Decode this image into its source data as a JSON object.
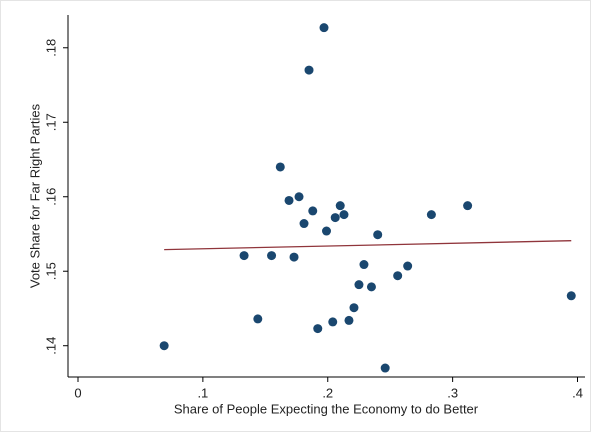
{
  "chart_data": {
    "type": "scatter",
    "xlabel": "Share of People Expecting the Economy to do Better",
    "ylabel": "Vote Share for Far Right Parties",
    "xlim": [
      -0.008,
      0.406
    ],
    "ylim": [
      0.1358,
      0.1844
    ],
    "xticks": [
      {
        "value": 0,
        "label": "0"
      },
      {
        "value": 0.1,
        "label": ".1"
      },
      {
        "value": 0.2,
        "label": ".2"
      },
      {
        "value": 0.3,
        "label": ".3"
      },
      {
        "value": 0.4,
        "label": ".4"
      }
    ],
    "yticks": [
      {
        "value": 0.14,
        "label": ".14"
      },
      {
        "value": 0.15,
        "label": ".15"
      },
      {
        "value": 0.16,
        "label": ".16"
      },
      {
        "value": 0.17,
        "label": ".17"
      },
      {
        "value": 0.18,
        "label": ".18"
      }
    ],
    "series": [
      {
        "color": "#1a476f",
        "x": [
          0.069,
          0.144,
          0.133,
          0.155,
          0.173,
          0.162,
          0.169,
          0.177,
          0.181,
          0.188,
          0.185,
          0.197,
          0.192,
          0.199,
          0.204,
          0.206,
          0.21,
          0.213,
          0.217,
          0.221,
          0.225,
          0.229,
          0.235,
          0.24,
          0.246,
          0.256,
          0.264,
          0.283,
          0.312,
          0.395
        ],
        "values": [
          0.14,
          0.1436,
          0.1521,
          0.1521,
          0.1519,
          0.164,
          0.1595,
          0.16,
          0.1564,
          0.1581,
          0.177,
          0.1827,
          0.1423,
          0.1554,
          0.1432,
          0.1572,
          0.1588,
          0.1576,
          0.1434,
          0.1451,
          0.1482,
          0.1509,
          0.1479,
          0.1549,
          0.137,
          0.1494,
          0.1507,
          0.1576,
          0.1588,
          0.1467
        ]
      }
    ],
    "fit_line": {
      "color": "#90353b",
      "x": [
        0.069,
        0.395
      ],
      "values": [
        0.1529,
        0.1541
      ]
    }
  }
}
